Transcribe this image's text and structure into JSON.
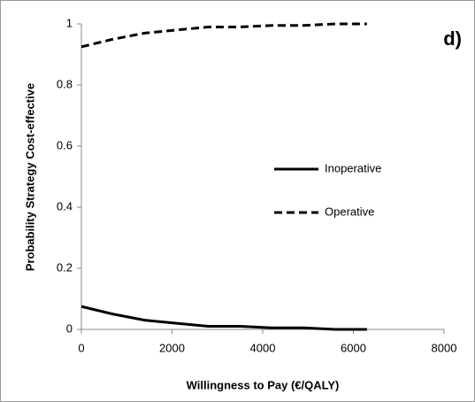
{
  "chart_data": {
    "type": "line",
    "annotation": "d)",
    "x_label": "Willingness to Pay (€/QALY)",
    "y_label": "Probability Strategy Cost-effective",
    "x": [
      0,
      700,
      1400,
      2100,
      2800,
      3500,
      4200,
      4900,
      5600,
      6300
    ],
    "series": [
      {
        "name": "Inoperative",
        "color": "#000000",
        "line_style": "solid",
        "values": [
          0.075,
          0.05,
          0.03,
          0.02,
          0.01,
          0.01,
          0.005,
          0.005,
          0,
          0
        ]
      },
      {
        "name": "Operative",
        "color": "#000000",
        "line_style": "dashed",
        "values": [
          0.925,
          0.95,
          0.97,
          0.98,
          0.99,
          0.99,
          0.995,
          0.995,
          1,
          1
        ]
      }
    ],
    "xlim": [
      0,
      8000
    ],
    "xticks": [
      0,
      2000,
      4000,
      6000,
      8000
    ],
    "ylim": [
      0,
      1
    ],
    "yticks": [
      0,
      0.2,
      0.4,
      0.6,
      0.8,
      1
    ],
    "grid": false
  }
}
